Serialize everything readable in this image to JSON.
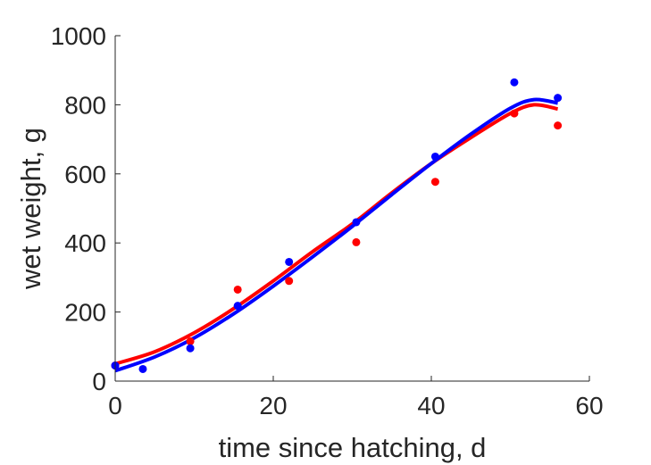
{
  "chart_data": {
    "type": "scatter",
    "title": "",
    "xlabel": "time since hatching, d",
    "ylabel": "wet weight, g",
    "xlim": [
      0,
      60
    ],
    "ylim": [
      0,
      1000
    ],
    "xticks": [
      "0",
      "20",
      "40",
      "60"
    ],
    "yticks": [
      "0",
      "200",
      "400",
      "600",
      "800",
      "1000"
    ],
    "grid": false,
    "legend": "none",
    "series": [
      {
        "kind": "points",
        "color": "#ff0000",
        "x": [
          0,
          9.5,
          15.5,
          22,
          30.5,
          40.5,
          50.5,
          56
        ],
        "y": [
          45,
          115,
          265,
          290,
          402,
          577,
          775,
          740
        ]
      },
      {
        "kind": "points",
        "color": "#0000ff",
        "x": [
          0,
          3.5,
          9.5,
          15.5,
          22,
          30.5,
          40.5,
          50.5,
          56
        ],
        "y": [
          45,
          35,
          95,
          218,
          345,
          460,
          650,
          865,
          820
        ]
      },
      {
        "kind": "fit-line",
        "color": "#ff0000",
        "x": [
          0,
          5,
          10,
          15,
          20,
          25,
          30,
          35,
          40,
          45,
          50,
          53,
          56
        ],
        "y": [
          50,
          85,
          140,
          210,
          290,
          375,
          455,
          545,
          630,
          705,
          775,
          800,
          788
        ]
      },
      {
        "kind": "fit-line",
        "color": "#0000ff",
        "x": [
          0,
          5,
          10,
          15,
          20,
          25,
          30,
          35,
          40,
          45,
          50,
          53,
          56
        ],
        "y": [
          30,
          70,
          125,
          195,
          275,
          360,
          448,
          540,
          630,
          715,
          790,
          815,
          805
        ]
      }
    ]
  }
}
